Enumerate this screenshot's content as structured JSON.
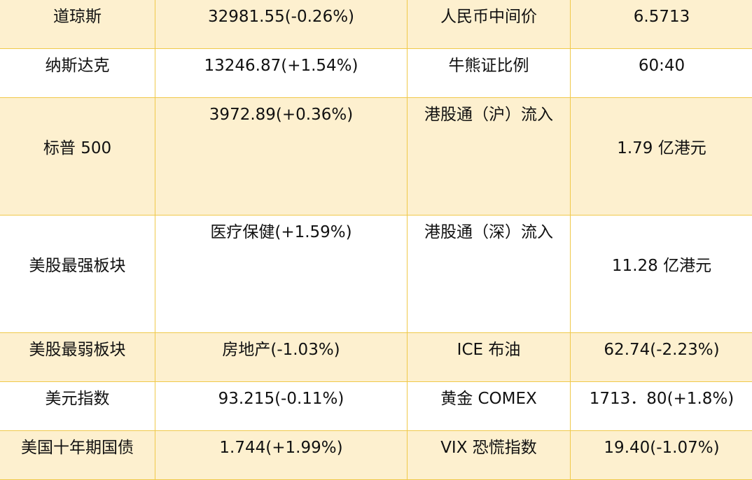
{
  "colors": {
    "row_alt": "#fdf0cf",
    "border": "#f0c94a"
  },
  "rows": [
    {
      "label": "道琼斯",
      "value": "32981.55(-0.26%)",
      "label2": "人民币中间价",
      "value2": "6.5713"
    },
    {
      "label": "纳斯达克",
      "value": "13246.87(+1.54%)",
      "label2": "牛熊证比例",
      "value2": "60:40"
    },
    {
      "label": "标普 500",
      "value": "3972.89(+0.36%)",
      "label2": "港股通（沪）流入",
      "value2": "1.79 亿港元"
    },
    {
      "label": "美股最强板块",
      "value": "医疗保健(+1.59%)",
      "label2": "港股通（深）流入",
      "value2": "11.28 亿港元"
    },
    {
      "label": "美股最弱板块",
      "value": "房地产(-1.03%)",
      "label2": "ICE 布油",
      "value2": "62.74(-2.23%)"
    },
    {
      "label": "美元指数",
      "value": "93.215(-0.11%)",
      "label2": "黄金 COMEX",
      "value2": "1713．80(+1.8%)"
    },
    {
      "label": "美国十年期国债",
      "value": "1.744(+1.99%)",
      "label2": "VIX 恐慌指数",
      "value2": "19.40(-1.07%)"
    }
  ]
}
